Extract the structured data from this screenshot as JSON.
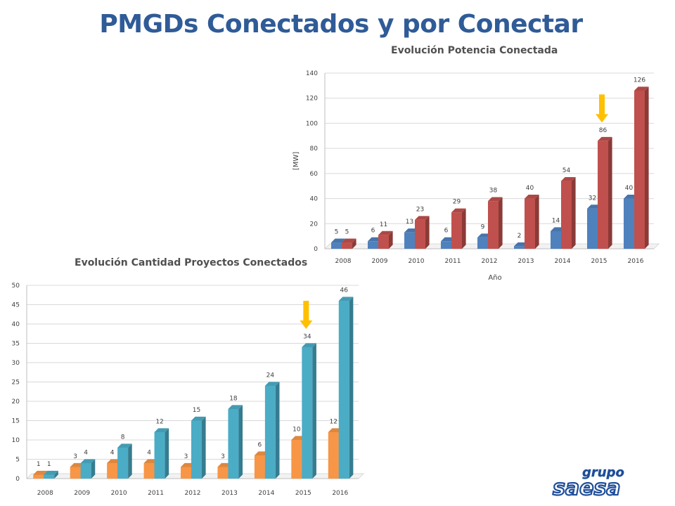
{
  "page_title": "PMGDs Conectados y por Conectar",
  "chart_data": [
    {
      "id": "potencia",
      "type": "bar",
      "title": "Evolución Potencia Conectada",
      "xlabel": "Año",
      "ylabel": "[MW]",
      "ylim": [
        0,
        140
      ],
      "yticks": [
        0,
        20,
        40,
        60,
        80,
        100,
        120,
        140
      ],
      "grid": true,
      "categories": [
        "2008",
        "2009",
        "2010",
        "2011",
        "2012",
        "2013",
        "2014",
        "2015",
        "2016"
      ],
      "series": [
        {
          "values": [
            5,
            6,
            13,
            6,
            9,
            2,
            14,
            32,
            40
          ],
          "color": "#4f81bd"
        },
        {
          "values": [
            5,
            11,
            23,
            29,
            38,
            40,
            54,
            86,
            126
          ],
          "color": "#c0504d"
        }
      ],
      "annotation": {
        "type": "arrow",
        "color": "#ffc000",
        "category": "2015"
      }
    },
    {
      "id": "cantidad",
      "type": "bar",
      "title": "Evolución Cantidad Proyectos Conectados",
      "xlabel": "",
      "ylabel": "",
      "ylim": [
        0,
        50
      ],
      "yticks": [
        0,
        5,
        10,
        15,
        20,
        25,
        30,
        35,
        40,
        45,
        50
      ],
      "grid": true,
      "categories": [
        "2008",
        "2009",
        "2010",
        "2011",
        "2012",
        "2013",
        "2014",
        "2015",
        "2016"
      ],
      "series": [
        {
          "values": [
            1,
            3,
            4,
            4,
            3,
            3,
            6,
            10,
            12
          ],
          "color": "#f79646"
        },
        {
          "values": [
            1,
            4,
            8,
            12,
            15,
            18,
            24,
            34,
            46
          ],
          "color": "#4bacc6"
        }
      ],
      "annotation": {
        "type": "arrow",
        "color": "#ffc000",
        "category": "2015"
      }
    }
  ],
  "logo": {
    "top": "grupo",
    "bottom": "saesa",
    "color": "#1f4e9a"
  }
}
